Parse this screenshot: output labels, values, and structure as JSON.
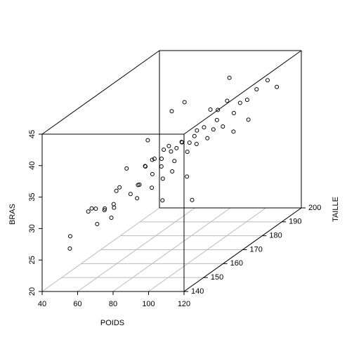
{
  "chart_data": {
    "type": "scatter3d",
    "xlabel": "POIDS",
    "ylabel": "TAILLE",
    "zlabel": "BRAS",
    "xlim": [
      40,
      120
    ],
    "xticks": [
      40,
      60,
      80,
      100,
      120
    ],
    "ylim": [
      140,
      200
    ],
    "yticks": [
      140,
      150,
      160,
      170,
      180,
      190,
      200
    ],
    "zlim": [
      20,
      45
    ],
    "zticks": [
      20,
      25,
      30,
      35,
      40,
      45
    ],
    "grid": true,
    "color": "#000000",
    "x": [
      47,
      49,
      55,
      57,
      58,
      60,
      61,
      63,
      64,
      66,
      66,
      68,
      70,
      70,
      72,
      74,
      75,
      76,
      78,
      79,
      80,
      81,
      82,
      83,
      84,
      85,
      86,
      86,
      87,
      88,
      88,
      90,
      90,
      91,
      92,
      93,
      94,
      95,
      96,
      97,
      98,
      99,
      100,
      72,
      80,
      85,
      62,
      77,
      82,
      88,
      93,
      95,
      98,
      102,
      104,
      106,
      108,
      110,
      112,
      115,
      106,
      100,
      96
    ],
    "y": [
      148,
      146,
      150,
      152,
      149,
      150,
      153,
      151,
      155,
      153,
      156,
      150,
      158,
      156,
      160,
      162,
      158,
      160,
      163,
      161,
      160,
      165,
      163,
      162,
      166,
      164,
      160,
      167,
      165,
      168,
      163,
      166,
      170,
      168,
      172,
      166,
      170,
      168,
      172,
      165,
      175,
      171,
      175,
      165,
      170,
      172,
      158,
      155,
      158,
      158,
      178,
      180,
      182,
      185,
      180,
      185,
      188,
      182,
      190,
      192,
      178,
      178,
      185
    ],
    "z": [
      27,
      25.5,
      30.5,
      30.5,
      31.2,
      28.5,
      30.3,
      30.5,
      30,
      31,
      33,
      29.5,
      31.5,
      36,
      32.5,
      35,
      33,
      35.5,
      36,
      34,
      36.5,
      37,
      36,
      35,
      36.5,
      37.8,
      33.5,
      36.8,
      35.2,
      37.5,
      34,
      38,
      37,
      36,
      38.5,
      32.5,
      36.8,
      38.5,
      39,
      29,
      38,
      37.5,
      39.5,
      38.5,
      42,
      43,
      32,
      31.5,
      32.5,
      30.5,
      40.5,
      40,
      41,
      40,
      39.5,
      40.5,
      41.5,
      38,
      42.5,
      41,
      37,
      37.8,
      44
    ]
  }
}
